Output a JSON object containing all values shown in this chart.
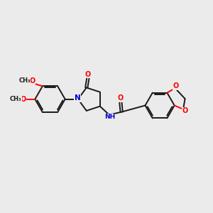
{
  "background_color": "#ebebeb",
  "bond_color": "#1a1a1a",
  "O_color": "#ff0000",
  "N_color": "#0000cc",
  "figsize": [
    3.0,
    3.0
  ],
  "dpi": 100,
  "lw": 1.4,
  "xlim": [
    0,
    10
  ],
  "ylim": [
    0,
    10
  ]
}
